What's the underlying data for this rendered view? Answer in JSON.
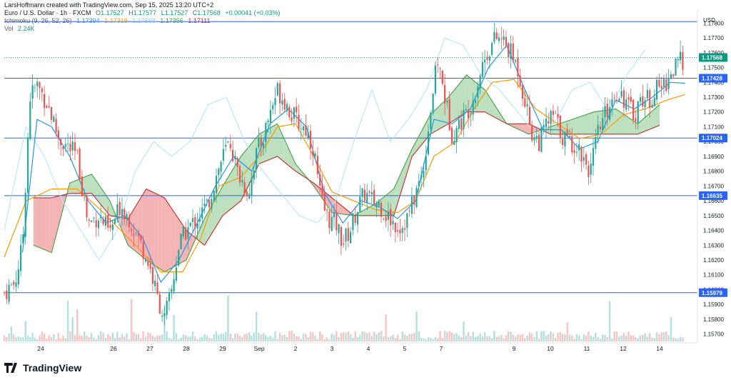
{
  "header": {
    "credit": "LarsHoffmann created with TradingView.com, Sep 15, 2025 13:20 UTC+2",
    "symbol": "Euro / U.S. Dollar · 1h · FXCM",
    "ohlc": {
      "o_label": "O",
      "o": "1.17527",
      "h_label": "H",
      "h": "1.17577",
      "l_label": "L",
      "l": "1.17527",
      "c_label": "C",
      "c": "1.17568",
      "change": "+0.00041 (+0.03%)"
    },
    "ichimoku": {
      "label": "Ichimoku (9, 26, 52, 26)",
      "values": [
        "1.17394",
        "1.17318",
        "1.17568",
        "1.17356",
        "1.17111"
      ]
    },
    "vol": {
      "label": "Vol",
      "value": "2.24K"
    }
  },
  "footer": {
    "brand": "TradingView"
  },
  "colors": {
    "up": "#26a69a",
    "down": "#ef5350",
    "conversion": "#2196f3",
    "base": "#ff9800",
    "lagging": "#b3e5fc",
    "leadA": "#43a047",
    "leadB": "#c62828",
    "cloud_up": "#a5d6a7",
    "cloud_down": "#ef9a9a",
    "hline": "#2962ff",
    "last_price": "#089981"
  },
  "chart_data": {
    "type": "candlestick",
    "currency": "USD",
    "y_ticks": [
      "1.17800",
      "1.17700",
      "1.17600",
      "1.17500",
      "1.17400",
      "1.17300",
      "1.17200",
      "1.17100",
      "1.17000",
      "1.16900",
      "1.16800",
      "1.16700",
      "1.16600",
      "1.16500",
      "1.16400",
      "1.16300",
      "1.16200",
      "1.16100",
      "1.16000",
      "1.15900",
      "1.15800",
      "1.15700"
    ],
    "ylim": [
      1.1565,
      1.1785
    ],
    "x_labels": [
      {
        "label": "24",
        "day": 1
      },
      {
        "label": "26",
        "day": 3
      },
      {
        "label": "27",
        "day": 4
      },
      {
        "label": "28",
        "day": 5
      },
      {
        "label": "29",
        "day": 6
      },
      {
        "label": "Sep",
        "day": 7
      },
      {
        "label": "2",
        "day": 8
      },
      {
        "label": "3",
        "day": 9
      },
      {
        "label": "4",
        "day": 10
      },
      {
        "label": "5",
        "day": 11
      },
      {
        "label": "7",
        "day": 12
      },
      {
        "label": "9",
        "day": 14
      },
      {
        "label": "10",
        "day": 15
      },
      {
        "label": "11",
        "day": 16
      },
      {
        "label": "12",
        "day": 17
      },
      {
        "label": "14",
        "day": 18
      }
    ],
    "horizontal_levels": [
      {
        "value": 1.17428,
        "label": "1.17428"
      },
      {
        "value": 1.17024,
        "label": "1.17024"
      },
      {
        "value": 1.16635,
        "label": "1.16635"
      },
      {
        "value": 1.15979,
        "label": "1.15979"
      }
    ],
    "top_line": 1.1781,
    "last_price": {
      "value": 1.17568,
      "label": "1.17568"
    },
    "price_path": [
      [
        0.0,
        1.1598
      ],
      [
        0.3,
        1.1605
      ],
      [
        0.5,
        1.163
      ],
      [
        0.7,
        1.173
      ],
      [
        0.9,
        1.1738
      ],
      [
        1.2,
        1.1725
      ],
      [
        1.5,
        1.1702
      ],
      [
        1.8,
        1.1695
      ],
      [
        2.0,
        1.169
      ],
      [
        2.3,
        1.1645
      ],
      [
        2.6,
        1.165
      ],
      [
        2.9,
        1.1638
      ],
      [
        3.2,
        1.1658
      ],
      [
        3.5,
        1.1645
      ],
      [
        3.8,
        1.1628
      ],
      [
        4.0,
        1.1615
      ],
      [
        4.2,
        1.1595
      ],
      [
        4.4,
        1.158
      ],
      [
        4.6,
        1.16
      ],
      [
        4.8,
        1.163
      ],
      [
        5.0,
        1.164
      ],
      [
        5.3,
        1.1648
      ],
      [
        5.6,
        1.1658
      ],
      [
        5.8,
        1.1675
      ],
      [
        6.0,
        1.169
      ],
      [
        6.2,
        1.17
      ],
      [
        6.4,
        1.168
      ],
      [
        6.7,
        1.1665
      ],
      [
        6.9,
        1.169
      ],
      [
        7.1,
        1.1702
      ],
      [
        7.3,
        1.172
      ],
      [
        7.5,
        1.1735
      ],
      [
        7.7,
        1.1728
      ],
      [
        7.9,
        1.1718
      ],
      [
        8.1,
        1.1712
      ],
      [
        8.3,
        1.1708
      ],
      [
        8.5,
        1.1695
      ],
      [
        8.7,
        1.166
      ],
      [
        8.9,
        1.1648
      ],
      [
        9.1,
        1.1645
      ],
      [
        9.3,
        1.1632
      ],
      [
        9.5,
        1.164
      ],
      [
        9.7,
        1.1655
      ],
      [
        9.9,
        1.1665
      ],
      [
        10.1,
        1.166
      ],
      [
        10.3,
        1.1658
      ],
      [
        10.5,
        1.165
      ],
      [
        10.7,
        1.1645
      ],
      [
        10.9,
        1.1642
      ],
      [
        11.1,
        1.165
      ],
      [
        11.3,
        1.1665
      ],
      [
        11.5,
        1.168
      ],
      [
        11.7,
        1.172
      ],
      [
        11.9,
        1.1755
      ],
      [
        12.1,
        1.173
      ],
      [
        12.3,
        1.1705
      ],
      [
        12.5,
        1.1712
      ],
      [
        12.7,
        1.172
      ],
      [
        12.9,
        1.173
      ],
      [
        13.1,
        1.175
      ],
      [
        13.3,
        1.1762
      ],
      [
        13.5,
        1.177
      ],
      [
        13.7,
        1.1768
      ],
      [
        13.9,
        1.176
      ],
      [
        14.1,
        1.175
      ],
      [
        14.3,
        1.1728
      ],
      [
        14.5,
        1.1705
      ],
      [
        14.7,
        1.17
      ],
      [
        14.9,
        1.1712
      ],
      [
        15.1,
        1.1718
      ],
      [
        15.3,
        1.1705
      ],
      [
        15.5,
        1.17
      ],
      [
        15.7,
        1.1698
      ],
      [
        15.9,
        1.169
      ],
      [
        16.1,
        1.168
      ],
      [
        16.3,
        1.1705
      ],
      [
        16.5,
        1.1718
      ],
      [
        16.7,
        1.173
      ],
      [
        16.9,
        1.1735
      ],
      [
        17.1,
        1.1725
      ],
      [
        17.3,
        1.1718
      ],
      [
        17.5,
        1.173
      ],
      [
        17.7,
        1.1728
      ],
      [
        17.9,
        1.1735
      ],
      [
        18.1,
        1.1738
      ],
      [
        18.3,
        1.1745
      ],
      [
        18.5,
        1.1752
      ],
      [
        18.7,
        1.1757
      ]
    ],
    "conversion_line": [
      [
        0.5,
        1.1625
      ],
      [
        0.9,
        1.1715
      ],
      [
        1.3,
        1.171
      ],
      [
        1.8,
        1.169
      ],
      [
        2.3,
        1.166
      ],
      [
        2.8,
        1.1645
      ],
      [
        3.3,
        1.165
      ],
      [
        3.8,
        1.1635
      ],
      [
        4.3,
        1.1605
      ],
      [
        4.8,
        1.162
      ],
      [
        5.3,
        1.1645
      ],
      [
        5.8,
        1.167
      ],
      [
        6.3,
        1.169
      ],
      [
        6.8,
        1.168
      ],
      [
        7.3,
        1.1712
      ],
      [
        7.8,
        1.1722
      ],
      [
        8.3,
        1.171
      ],
      [
        8.8,
        1.1665
      ],
      [
        9.3,
        1.1645
      ],
      [
        9.8,
        1.166
      ],
      [
        10.3,
        1.1656
      ],
      [
        10.8,
        1.1648
      ],
      [
        11.3,
        1.166
      ],
      [
        11.8,
        1.1715
      ],
      [
        12.3,
        1.1712
      ],
      [
        12.8,
        1.1722
      ],
      [
        13.3,
        1.175
      ],
      [
        13.8,
        1.1765
      ],
      [
        14.3,
        1.1735
      ],
      [
        14.8,
        1.1708
      ],
      [
        15.3,
        1.1708
      ],
      [
        15.8,
        1.1695
      ],
      [
        16.3,
        1.17
      ],
      [
        16.8,
        1.1728
      ],
      [
        17.3,
        1.1722
      ],
      [
        17.8,
        1.173
      ],
      [
        18.3,
        1.174
      ],
      [
        18.7,
        1.17394
      ]
    ],
    "base_line": [
      [
        0.0,
        1.1622
      ],
      [
        0.6,
        1.166
      ],
      [
        1.3,
        1.1668
      ],
      [
        2.0,
        1.1668
      ],
      [
        2.6,
        1.1655
      ],
      [
        3.2,
        1.164
      ],
      [
        3.8,
        1.1625
      ],
      [
        4.3,
        1.1612
      ],
      [
        4.9,
        1.1612
      ],
      [
        5.4,
        1.1635
      ],
      [
        5.9,
        1.167
      ],
      [
        6.5,
        1.1676
      ],
      [
        7.0,
        1.169
      ],
      [
        7.5,
        1.171
      ],
      [
        8.0,
        1.1712
      ],
      [
        8.5,
        1.169
      ],
      [
        9.0,
        1.1666
      ],
      [
        9.6,
        1.166
      ],
      [
        10.2,
        1.1654
      ],
      [
        10.8,
        1.1652
      ],
      [
        11.3,
        1.166
      ],
      [
        11.8,
        1.169
      ],
      [
        12.4,
        1.17
      ],
      [
        12.9,
        1.1722
      ],
      [
        13.4,
        1.174
      ],
      [
        14.0,
        1.1742
      ],
      [
        14.6,
        1.1722
      ],
      [
        15.2,
        1.1712
      ],
      [
        15.8,
        1.1702
      ],
      [
        16.4,
        1.1705
      ],
      [
        17.0,
        1.1718
      ],
      [
        17.6,
        1.1722
      ],
      [
        18.2,
        1.1728
      ],
      [
        18.7,
        1.17318
      ]
    ],
    "lagging_span": [
      [
        0.0,
        1.164
      ],
      [
        0.6,
        1.171
      ],
      [
        1.1,
        1.169
      ],
      [
        1.6,
        1.166
      ],
      [
        2.1,
        1.164
      ],
      [
        2.6,
        1.162
      ],
      [
        3.1,
        1.164
      ],
      [
        3.6,
        1.168
      ],
      [
        4.1,
        1.17
      ],
      [
        4.6,
        1.169
      ],
      [
        5.1,
        1.17
      ],
      [
        5.6,
        1.1725
      ],
      [
        6.1,
        1.173
      ],
      [
        6.6,
        1.17
      ],
      [
        7.1,
        1.168
      ],
      [
        7.6,
        1.1665
      ],
      [
        8.1,
        1.165
      ],
      [
        8.6,
        1.1645
      ],
      [
        9.1,
        1.166
      ],
      [
        9.6,
        1.17
      ],
      [
        10.1,
        1.1735
      ],
      [
        10.6,
        1.17
      ],
      [
        11.1,
        1.1715
      ],
      [
        11.6,
        1.1735
      ],
      [
        12.1,
        1.177
      ],
      [
        12.6,
        1.1765
      ],
      [
        13.1,
        1.1745
      ],
      [
        13.6,
        1.1735
      ],
      [
        14.1,
        1.172
      ],
      [
        14.6,
        1.1705
      ],
      [
        15.1,
        1.1712
      ],
      [
        15.6,
        1.1735
      ],
      [
        16.1,
        1.174
      ],
      [
        16.6,
        1.172
      ],
      [
        17.1,
        1.1745
      ],
      [
        17.6,
        1.1762
      ]
    ],
    "leading_span_a": [
      [
        0.8,
        1.163
      ],
      [
        1.3,
        1.1625
      ],
      [
        1.8,
        1.1672
      ],
      [
        2.4,
        1.1678
      ],
      [
        2.9,
        1.166
      ],
      [
        3.4,
        1.163
      ],
      [
        3.9,
        1.162
      ],
      [
        4.4,
        1.1612
      ],
      [
        5.0,
        1.162
      ],
      [
        5.5,
        1.1648
      ],
      [
        6.0,
        1.167
      ],
      [
        6.5,
        1.169
      ],
      [
        7.0,
        1.1705
      ],
      [
        7.5,
        1.1712
      ],
      [
        8.0,
        1.1685
      ],
      [
        8.5,
        1.167
      ],
      [
        9.0,
        1.1652
      ],
      [
        9.6,
        1.165
      ],
      [
        10.2,
        1.1658
      ],
      [
        10.7,
        1.1668
      ],
      [
        11.2,
        1.1695
      ],
      [
        11.7,
        1.1718
      ],
      [
        12.2,
        1.173
      ],
      [
        12.7,
        1.1745
      ],
      [
        13.2,
        1.1735
      ],
      [
        13.8,
        1.1712
      ],
      [
        14.4,
        1.1705
      ],
      [
        15.0,
        1.171
      ],
      [
        15.6,
        1.1715
      ],
      [
        16.2,
        1.172
      ],
      [
        16.8,
        1.1722
      ],
      [
        17.4,
        1.1712
      ],
      [
        18.0,
        1.1725
      ]
    ],
    "leading_span_b": [
      [
        0.8,
        1.1662
      ],
      [
        1.3,
        1.1662
      ],
      [
        1.8,
        1.1665
      ],
      [
        2.4,
        1.1665
      ],
      [
        2.9,
        1.165
      ],
      [
        3.4,
        1.1648
      ],
      [
        3.9,
        1.1668
      ],
      [
        4.4,
        1.1662
      ],
      [
        5.0,
        1.164
      ],
      [
        5.5,
        1.163
      ],
      [
        6.0,
        1.165
      ],
      [
        6.5,
        1.166
      ],
      [
        7.0,
        1.1685
      ],
      [
        7.5,
        1.169
      ],
      [
        8.0,
        1.168
      ],
      [
        8.5,
        1.1672
      ],
      [
        9.0,
        1.1662
      ],
      [
        9.6,
        1.165
      ],
      [
        10.2,
        1.165
      ],
      [
        10.7,
        1.165
      ],
      [
        11.2,
        1.169
      ],
      [
        11.7,
        1.1705
      ],
      [
        12.2,
        1.1712
      ],
      [
        12.7,
        1.172
      ],
      [
        13.2,
        1.172
      ],
      [
        13.8,
        1.1712
      ],
      [
        14.4,
        1.1712
      ],
      [
        15.0,
        1.1705
      ],
      [
        15.6,
        1.1705
      ],
      [
        16.2,
        1.1705
      ],
      [
        16.8,
        1.1705
      ],
      [
        17.4,
        1.1705
      ],
      [
        18.0,
        1.1711
      ]
    ]
  }
}
